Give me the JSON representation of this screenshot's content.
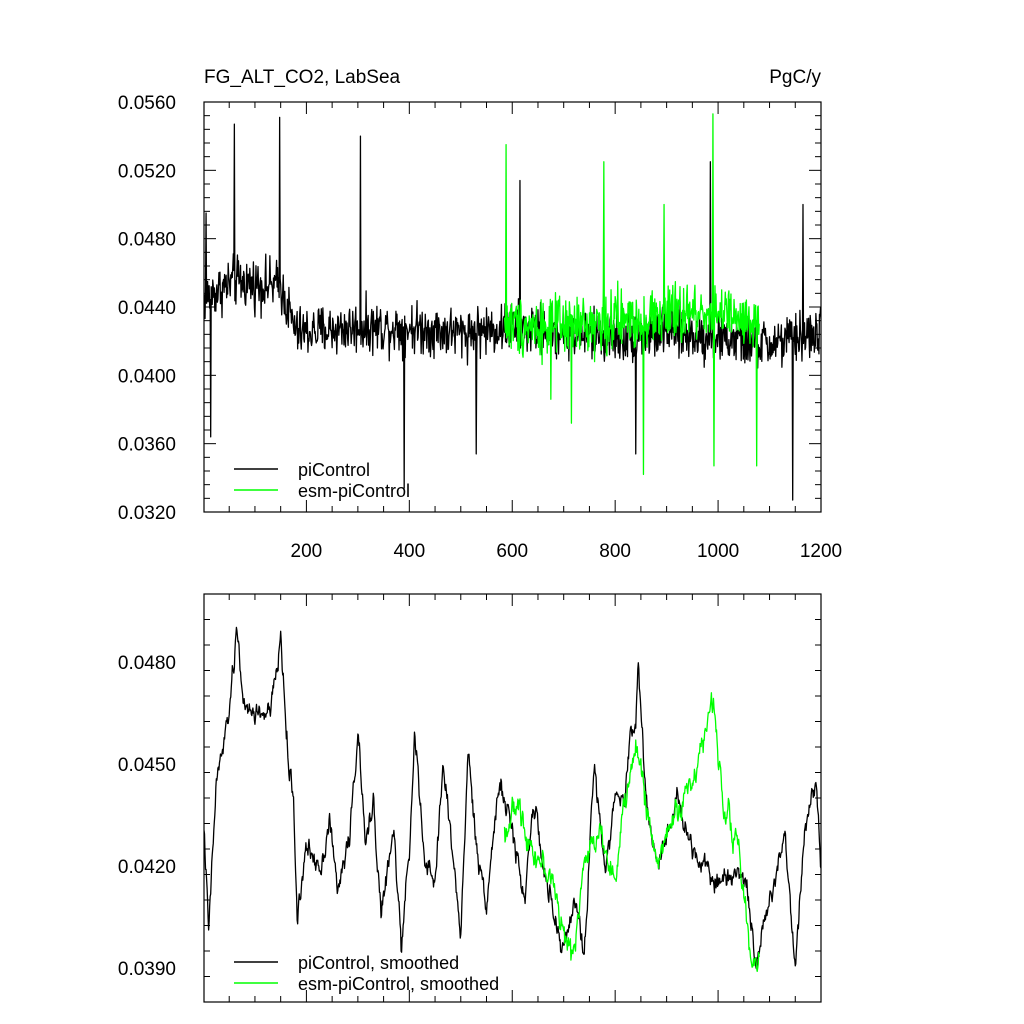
{
  "chart_data": [
    {
      "type": "line",
      "title": "FG_ALT_CO2, LabSea",
      "units": "PgC/y",
      "xlim": [
        1,
        1200
      ],
      "ylim": [
        0.032,
        0.056
      ],
      "x_ticks": [
        200,
        400,
        600,
        800,
        1000,
        1200
      ],
      "x_tick_labels": [
        "200",
        "400",
        "600",
        "800",
        "1000",
        "1200"
      ],
      "y_ticks": [
        0.032,
        0.036,
        0.04,
        0.044,
        0.048,
        0.052,
        0.056
      ],
      "y_tick_labels": [
        "0.0320",
        "0.0360",
        "0.0400",
        "0.0440",
        "0.0480",
        "0.0520",
        "0.0560"
      ],
      "grid": false,
      "legend_position": "bottom-left",
      "series": [
        {
          "name": "piControl",
          "color": "#000000",
          "x_range": [
            1,
            1200
          ],
          "mean_profile": [
            [
              1,
              0.0445
            ],
            [
              60,
              0.0455
            ],
            [
              150,
              0.0452
            ],
            [
              180,
              0.0425
            ],
            [
              300,
              0.0428
            ],
            [
              400,
              0.0428
            ],
            [
              500,
              0.0425
            ],
            [
              600,
              0.0428
            ],
            [
              700,
              0.0425
            ],
            [
              800,
              0.0422
            ],
            [
              900,
              0.0425
            ],
            [
              1000,
              0.0422
            ],
            [
              1100,
              0.0418
            ],
            [
              1200,
              0.0425
            ]
          ],
          "noise_amplitude": 0.0022,
          "extremes": [
            [
              5,
              0.0495
            ],
            [
              14,
              0.0364
            ],
            [
              60,
              0.0547
            ],
            [
              148,
              0.0551
            ],
            [
              305,
              0.054
            ],
            [
              390,
              0.0334
            ],
            [
              530,
              0.0354
            ],
            [
              615,
              0.0514
            ],
            [
              840,
              0.0354
            ],
            [
              985,
              0.0525
            ],
            [
              1145,
              0.0327
            ],
            [
              1165,
              0.05
            ]
          ]
        },
        {
          "name": "esm-piControl",
          "color": "#00ff00",
          "x_range": [
            585,
            1080
          ],
          "mean_profile": [
            [
              585,
              0.043
            ],
            [
              700,
              0.0428
            ],
            [
              800,
              0.0432
            ],
            [
              900,
              0.0435
            ],
            [
              1000,
              0.0438
            ],
            [
              1080,
              0.0425
            ]
          ],
          "noise_amplitude": 0.0026,
          "extremes": [
            [
              588,
              0.0535
            ],
            [
              675,
              0.0386
            ],
            [
              715,
              0.0372
            ],
            [
              778,
              0.0525
            ],
            [
              855,
              0.0342
            ],
            [
              895,
              0.05
            ],
            [
              990,
              0.0553
            ],
            [
              992,
              0.0347
            ],
            [
              1075,
              0.0347
            ]
          ]
        }
      ]
    },
    {
      "type": "line",
      "xlim": [
        1,
        1200
      ],
      "ylim": [
        0.038,
        0.05
      ],
      "x_ticks": [
        200,
        400,
        600,
        800,
        1000,
        1200
      ],
      "x_tick_labels": [
        "",
        "",
        "",
        "",
        "",
        ""
      ],
      "y_ticks": [
        0.039,
        0.042,
        0.045,
        0.048
      ],
      "y_tick_labels": [
        "0.0390",
        "0.0420",
        "0.0450",
        "0.0480"
      ],
      "grid": false,
      "legend_position": "bottom-left",
      "series": [
        {
          "name": "piControl, smoothed",
          "color": "#000000",
          "x_range": [
            1,
            1200
          ],
          "profile": [
            [
              1,
              0.0432
            ],
            [
              10,
              0.04
            ],
            [
              25,
              0.0445
            ],
            [
              45,
              0.046
            ],
            [
              60,
              0.048
            ],
            [
              65,
              0.049
            ],
            [
              80,
              0.0465
            ],
            [
              100,
              0.0465
            ],
            [
              130,
              0.0465
            ],
            [
              145,
              0.048
            ],
            [
              150,
              0.0488
            ],
            [
              165,
              0.045
            ],
            [
              175,
              0.044
            ],
            [
              182,
              0.0405
            ],
            [
              200,
              0.0425
            ],
            [
              230,
              0.042
            ],
            [
              245,
              0.0435
            ],
            [
              260,
              0.0412
            ],
            [
              285,
              0.043
            ],
            [
              300,
              0.046
            ],
            [
              315,
              0.0425
            ],
            [
              330,
              0.044
            ],
            [
              345,
              0.0406
            ],
            [
              370,
              0.043
            ],
            [
              385,
              0.0395
            ],
            [
              400,
              0.0425
            ],
            [
              410,
              0.046
            ],
            [
              430,
              0.042
            ],
            [
              450,
              0.0415
            ],
            [
              465,
              0.045
            ],
            [
              480,
              0.043
            ],
            [
              500,
              0.04
            ],
            [
              515,
              0.0455
            ],
            [
              530,
              0.0425
            ],
            [
              550,
              0.041
            ],
            [
              575,
              0.0445
            ],
            [
              600,
              0.043
            ],
            [
              625,
              0.041
            ],
            [
              640,
              0.044
            ],
            [
              660,
              0.042
            ],
            [
              680,
              0.0405
            ],
            [
              700,
              0.0395
            ],
            [
              720,
              0.041
            ],
            [
              740,
              0.0395
            ],
            [
              760,
              0.045
            ],
            [
              780,
              0.042
            ],
            [
              800,
              0.044
            ],
            [
              820,
              0.044
            ],
            [
              830,
              0.0462
            ],
            [
              840,
              0.046
            ],
            [
              845,
              0.048
            ],
            [
              860,
              0.044
            ],
            [
              880,
              0.042
            ],
            [
              900,
              0.043
            ],
            [
              920,
              0.044
            ],
            [
              950,
              0.0425
            ],
            [
              980,
              0.042
            ],
            [
              1000,
              0.0415
            ],
            [
              1040,
              0.042
            ],
            [
              1060,
              0.041
            ],
            [
              1075,
              0.039
            ],
            [
              1100,
              0.041
            ],
            [
              1130,
              0.043
            ],
            [
              1150,
              0.039
            ],
            [
              1170,
              0.0435
            ],
            [
              1190,
              0.0445
            ],
            [
              1200,
              0.042
            ]
          ],
          "noise_amplitude": 0.001
        },
        {
          "name": "esm-piControl, smoothed",
          "color": "#00ff00",
          "x_range": [
            585,
            1080
          ],
          "profile": [
            [
              585,
              0.043
            ],
            [
              610,
              0.0438
            ],
            [
              640,
              0.0425
            ],
            [
              680,
              0.0415
            ],
            [
              700,
              0.04
            ],
            [
              715,
              0.0392
            ],
            [
              740,
              0.042
            ],
            [
              770,
              0.0432
            ],
            [
              800,
              0.0415
            ],
            [
              820,
              0.044
            ],
            [
              840,
              0.0455
            ],
            [
              860,
              0.044
            ],
            [
              880,
              0.042
            ],
            [
              900,
              0.043
            ],
            [
              950,
              0.0445
            ],
            [
              990,
              0.0468
            ],
            [
              1010,
              0.044
            ],
            [
              1040,
              0.0425
            ],
            [
              1065,
              0.039
            ],
            [
              1080,
              0.0395
            ]
          ],
          "noise_amplitude": 0.0012
        }
      ]
    }
  ]
}
